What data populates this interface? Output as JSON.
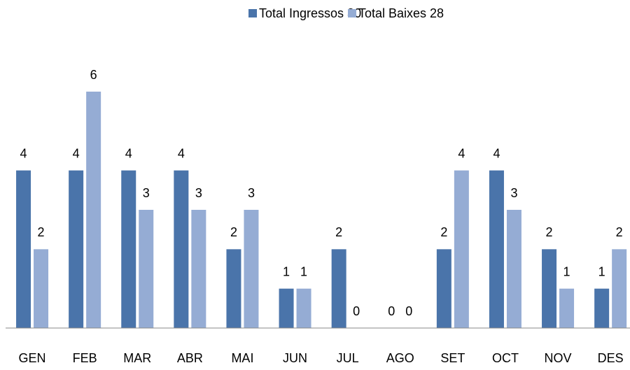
{
  "chart_data": {
    "type": "bar",
    "categories": [
      "GEN",
      "FEB",
      "MAR",
      "ABR",
      "MAI",
      "JUN",
      "JUL",
      "AGO",
      "SET",
      "OCT",
      "NOV",
      "DES"
    ],
    "series": [
      {
        "name": "Total Ingressos 30",
        "color": "#4a74aa",
        "values": [
          4,
          4,
          4,
          4,
          2,
          1,
          2,
          0,
          2,
          4,
          2,
          1
        ]
      },
      {
        "name": "Total Baixes 28",
        "color": "#95acd4",
        "values": [
          2,
          6,
          3,
          3,
          3,
          1,
          0,
          0,
          4,
          3,
          1,
          2
        ]
      }
    ],
    "ylim": [
      0,
      6
    ],
    "legend": "top"
  }
}
